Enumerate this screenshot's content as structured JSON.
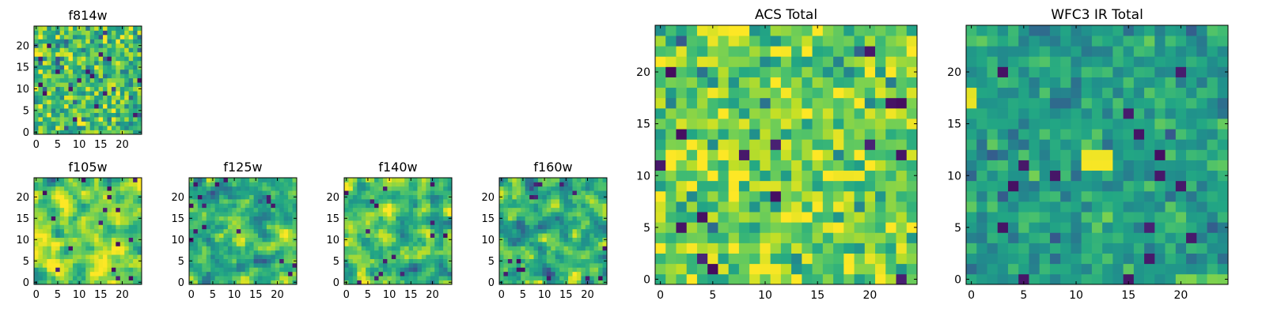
{
  "chart_data": [
    {
      "id": "f814w",
      "type": "heatmap",
      "title": "f814w",
      "grid_size": 25,
      "xlim": [
        0,
        24
      ],
      "ylim": [
        0,
        24
      ],
      "xticks": [
        "0",
        "5",
        "10",
        "15",
        "20"
      ],
      "yticks": [
        "0",
        "5",
        "10",
        "15",
        "20"
      ],
      "colormap": "viridis",
      "value_range": [
        0,
        1
      ],
      "values_description": "uncorrelated pixel-scale noise, mostly green-yellow with scattered dark pixels"
    },
    {
      "id": "f105w",
      "type": "heatmap",
      "title": "f105w",
      "grid_size": 25,
      "xlim": [
        0,
        24
      ],
      "ylim": [
        0,
        24
      ],
      "xticks": [
        "0",
        "5",
        "10",
        "15",
        "20"
      ],
      "yticks": [
        "0",
        "5",
        "10",
        "15",
        "20"
      ],
      "colormap": "viridis",
      "value_range": [
        0,
        1
      ],
      "values_description": "smoothed correlated noise, predominantly yellow-green with a few dark spots"
    },
    {
      "id": "f125w",
      "type": "heatmap",
      "title": "f125w",
      "grid_size": 25,
      "xlim": [
        0,
        24
      ],
      "ylim": [
        0,
        24
      ],
      "xticks": [
        "0",
        "5",
        "10",
        "15",
        "20"
      ],
      "yticks": [
        "0",
        "5",
        "10",
        "15",
        "20"
      ],
      "colormap": "viridis",
      "value_range": [
        0,
        1
      ],
      "values_description": "smoothed correlated noise, green with teal and dark patches"
    },
    {
      "id": "f140w",
      "type": "heatmap",
      "title": "f140w",
      "grid_size": 25,
      "xlim": [
        0,
        24
      ],
      "ylim": [
        0,
        24
      ],
      "xticks": [
        "0",
        "5",
        "10",
        "15",
        "20"
      ],
      "yticks": [
        "0",
        "5",
        "10",
        "15",
        "20"
      ],
      "colormap": "viridis",
      "value_range": [
        0,
        1
      ],
      "values_description": "smoothed correlated noise, green-yellow with dark blue patches"
    },
    {
      "id": "f160w",
      "type": "heatmap",
      "title": "f160w",
      "grid_size": 25,
      "xlim": [
        0,
        24
      ],
      "ylim": [
        0,
        24
      ],
      "xticks": [
        "0",
        "5",
        "10",
        "15",
        "20"
      ],
      "yticks": [
        "0",
        "5",
        "10",
        "15",
        "20"
      ],
      "colormap": "viridis",
      "value_range": [
        0,
        1
      ],
      "values_description": "smoothed correlated noise, teal-green with brighter lower-left region"
    },
    {
      "id": "acs_total",
      "type": "heatmap",
      "title": "ACS Total",
      "grid_size": 25,
      "xlim": [
        0,
        24
      ],
      "ylim": [
        0,
        24
      ],
      "xticks": [
        "0",
        "5",
        "10",
        "15",
        "20"
      ],
      "yticks": [
        "0",
        "5",
        "10",
        "15",
        "20"
      ],
      "colormap": "viridis",
      "value_range": [
        0,
        1
      ],
      "values_description": "pixel-scale noise, mostly light green and yellow with a few dark purple pixels"
    },
    {
      "id": "wfc3_ir_total",
      "type": "heatmap",
      "title": "WFC3 IR Total",
      "grid_size": 25,
      "xlim": [
        0,
        24
      ],
      "ylim": [
        0,
        24
      ],
      "xticks": [
        "0",
        "5",
        "10",
        "15",
        "20"
      ],
      "yticks": [
        "0",
        "5",
        "10",
        "15",
        "20"
      ],
      "colormap": "viridis",
      "value_range": [
        0,
        1
      ],
      "values_description": "pixel-scale noise, mostly teal-green with a bright yellow source at x≈11–13, y≈11–12"
    }
  ]
}
